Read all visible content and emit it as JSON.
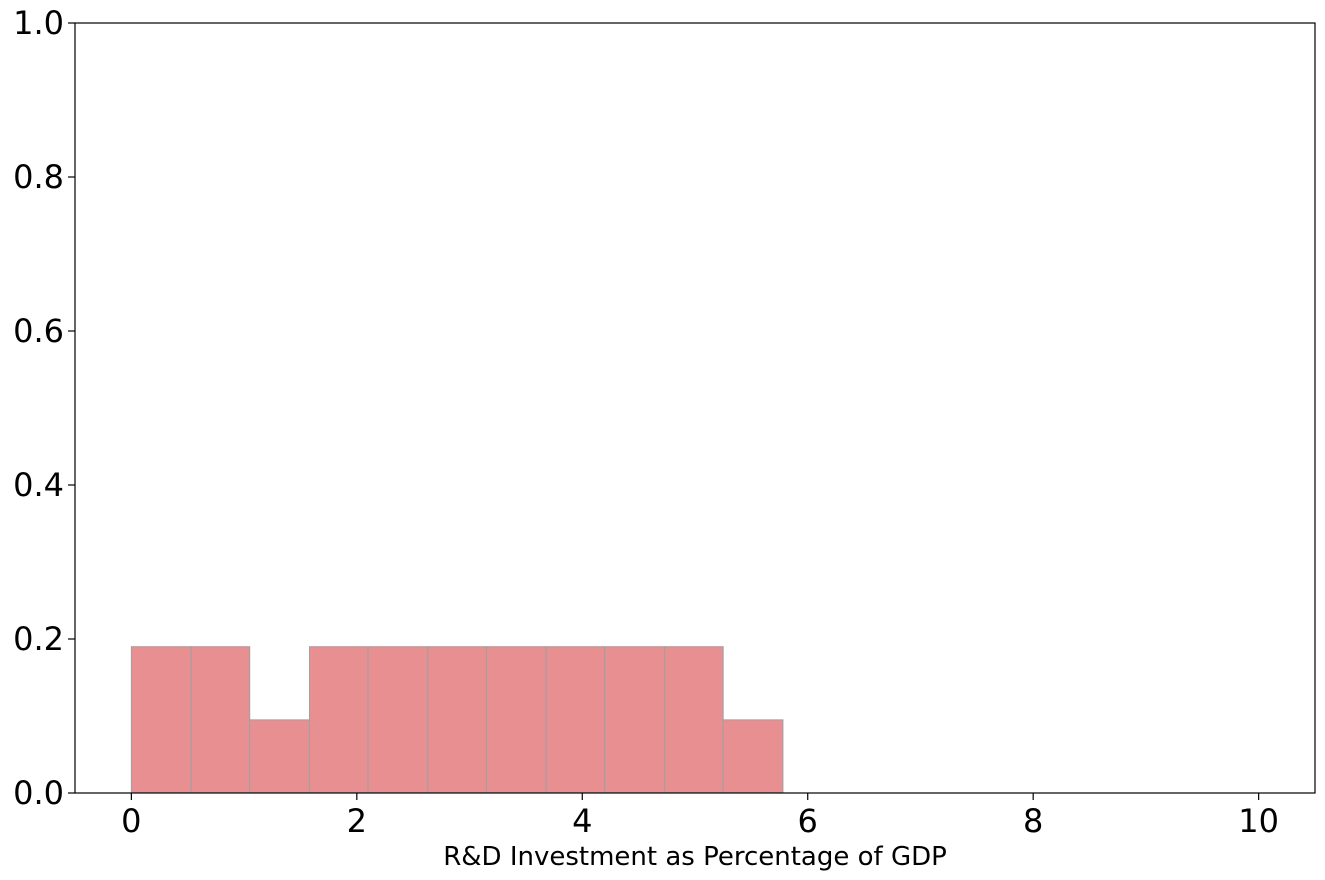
{
  "chart_data": {
    "type": "bar",
    "title": "",
    "xlabel": "R&D Investment as Percentage of GDP",
    "ylabel": "",
    "xlim": [
      -0.5,
      10.5
    ],
    "ylim": [
      0,
      1.0
    ],
    "xticks": [
      "0",
      "2",
      "4",
      "6",
      "8",
      "10"
    ],
    "yticks": [
      "0.0",
      "0.2",
      "0.4",
      "0.6",
      "0.8",
      "1.0"
    ],
    "bins": [
      {
        "x0": 0.0,
        "x1": 0.53,
        "value": 0.19
      },
      {
        "x0": 0.53,
        "x1": 1.05,
        "value": 0.19
      },
      {
        "x0": 1.05,
        "x1": 1.58,
        "value": 0.095
      },
      {
        "x0": 1.58,
        "x1": 2.1,
        "value": 0.19
      },
      {
        "x0": 2.1,
        "x1": 2.63,
        "value": 0.19
      },
      {
        "x0": 2.63,
        "x1": 3.15,
        "value": 0.19
      },
      {
        "x0": 3.15,
        "x1": 3.68,
        "value": 0.19
      },
      {
        "x0": 3.68,
        "x1": 4.2,
        "value": 0.19
      },
      {
        "x0": 4.2,
        "x1": 4.73,
        "value": 0.19
      },
      {
        "x0": 4.73,
        "x1": 5.25,
        "value": 0.19
      },
      {
        "x0": 5.25,
        "x1": 5.78,
        "value": 0.095
      }
    ],
    "grid": false,
    "colors": {
      "bar_fill": "#e88f91",
      "bar_edge": "#a0a0a0",
      "axis": "#000000"
    }
  }
}
